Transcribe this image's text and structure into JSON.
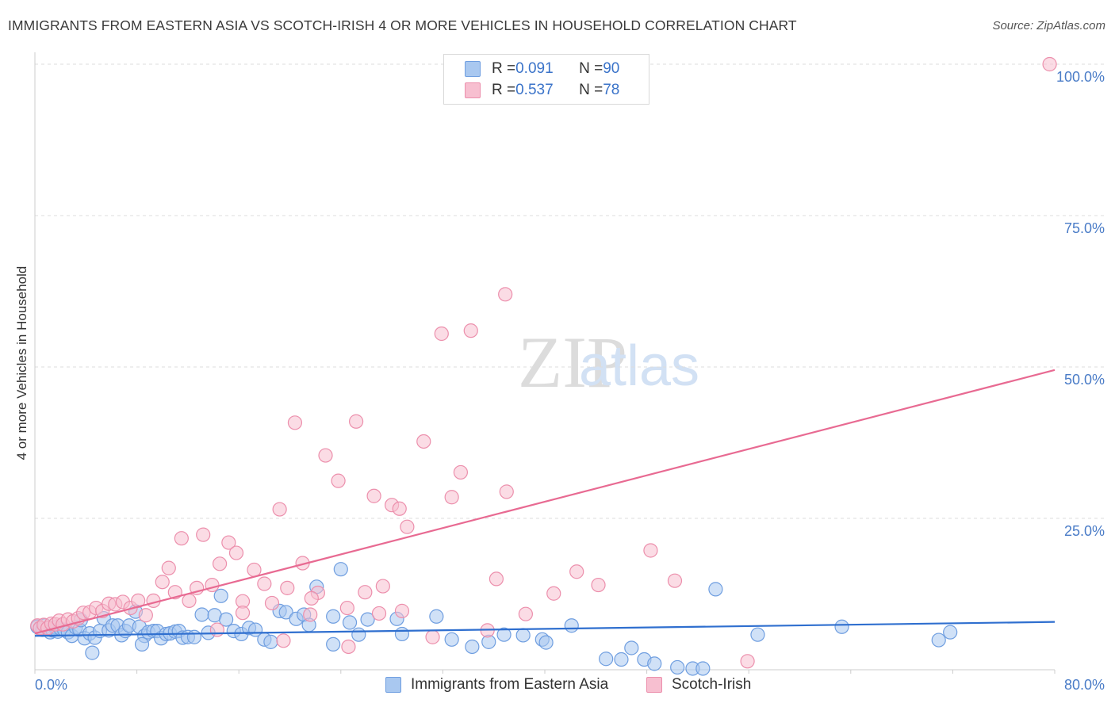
{
  "header": {
    "title": "IMMIGRANTS FROM EASTERN ASIA VS SCOTCH-IRISH 4 OR MORE VEHICLES IN HOUSEHOLD CORRELATION CHART",
    "source": "Source: ZipAtlas.com"
  },
  "legend": {
    "row1": {
      "r_label": "R = ",
      "r_value": "0.091",
      "n_label": "N = ",
      "n_value": "90"
    },
    "row2": {
      "r_label": "R = ",
      "r_value": "0.537",
      "n_label": "N = ",
      "n_value": "78"
    }
  },
  "watermark": {
    "zip": "ZIP",
    "atlas": "atlas"
  },
  "colors": {
    "blue_fill": "#a9c8f0",
    "blue_stroke": "#6f9ee0",
    "blue_line": "#2f6fcf",
    "pink_fill": "#f7bfd0",
    "pink_stroke": "#ec8fac",
    "pink_line": "#e86a92",
    "tick_text": "#4a7cc7",
    "grid": "#dddddd"
  },
  "chart_data": {
    "type": "scatter",
    "title": "IMMIGRANTS FROM EASTERN ASIA VS SCOTCH-IRISH 4 OR MORE VEHICLES IN HOUSEHOLD CORRELATION CHART",
    "xlabel": "",
    "ylabel": "4 or more Vehicles in Household",
    "xlim": [
      0,
      80
    ],
    "ylim": [
      0,
      100
    ],
    "x_tick_labels": [
      "0.0%",
      "80.0%"
    ],
    "y_ticks": [
      25,
      50,
      75,
      100
    ],
    "y_tick_labels": [
      "25.0%",
      "50.0%",
      "75.0%",
      "100.0%"
    ],
    "grid": true,
    "legend_position": "top-center",
    "series": [
      {
        "name": "Immigrants from Eastern Asia",
        "color": "#a9c8f0",
        "trend": {
          "x": [
            0,
            80
          ],
          "y": [
            5.6,
            7.9
          ]
        },
        "points": [
          [
            0.2,
            7.1
          ],
          [
            0.4,
            6.8
          ],
          [
            0.6,
            6.6
          ],
          [
            0.8,
            7.3
          ],
          [
            1.0,
            6.9
          ],
          [
            1.2,
            6.2
          ],
          [
            1.4,
            6.5
          ],
          [
            1.6,
            7.0
          ],
          [
            1.8,
            6.3
          ],
          [
            2.0,
            6.8
          ],
          [
            2.3,
            6.6
          ],
          [
            2.6,
            6.2
          ],
          [
            2.9,
            5.6
          ],
          [
            3.2,
            7.0
          ],
          [
            3.5,
            6.6
          ],
          [
            3.9,
            5.2
          ],
          [
            4.3,
            6.0
          ],
          [
            4.7,
            5.3
          ],
          [
            5.1,
            6.4
          ],
          [
            5.4,
            8.5
          ],
          [
            5.8,
            6.5
          ],
          [
            6.1,
            7.3
          ],
          [
            6.5,
            7.3
          ],
          [
            6.8,
            5.7
          ],
          [
            7.1,
            6.4
          ],
          [
            7.4,
            7.3
          ],
          [
            7.9,
            9.6
          ],
          [
            8.2,
            7.1
          ],
          [
            8.6,
            5.6
          ],
          [
            8.9,
            6.2
          ],
          [
            9.3,
            6.4
          ],
          [
            9.6,
            6.4
          ],
          [
            9.9,
            5.2
          ],
          [
            10.3,
            5.9
          ],
          [
            10.6,
            6.0
          ],
          [
            11.0,
            6.3
          ],
          [
            11.3,
            6.4
          ],
          [
            11.6,
            5.3
          ],
          [
            12.0,
            5.4
          ],
          [
            12.5,
            5.4
          ],
          [
            13.1,
            9.1
          ],
          [
            13.6,
            6.1
          ],
          [
            14.1,
            9.0
          ],
          [
            14.6,
            12.2
          ],
          [
            15.0,
            8.3
          ],
          [
            15.6,
            6.4
          ],
          [
            16.2,
            5.9
          ],
          [
            16.8,
            6.9
          ],
          [
            17.3,
            6.6
          ],
          [
            18.0,
            5.0
          ],
          [
            18.5,
            4.6
          ],
          [
            19.2,
            9.7
          ],
          [
            19.7,
            9.5
          ],
          [
            20.5,
            8.4
          ],
          [
            21.1,
            9.1
          ],
          [
            21.5,
            7.4
          ],
          [
            22.1,
            13.7
          ],
          [
            23.4,
            8.8
          ],
          [
            24.0,
            16.6
          ],
          [
            24.7,
            7.8
          ],
          [
            25.4,
            5.8
          ],
          [
            26.1,
            8.3
          ],
          [
            28.4,
            8.4
          ],
          [
            28.8,
            5.9
          ],
          [
            32.7,
            5.0
          ],
          [
            34.3,
            3.8
          ],
          [
            36.8,
            5.8
          ],
          [
            38.3,
            5.7
          ],
          [
            39.8,
            5.0
          ],
          [
            40.1,
            4.5
          ],
          [
            42.1,
            7.3
          ],
          [
            44.8,
            1.8
          ],
          [
            46.0,
            1.7
          ],
          [
            47.8,
            1.7
          ],
          [
            48.6,
            1.0
          ],
          [
            50.4,
            0.4
          ],
          [
            51.6,
            0.2
          ],
          [
            52.4,
            0.2
          ],
          [
            53.4,
            13.3
          ],
          [
            56.7,
            5.8
          ],
          [
            63.3,
            7.1
          ],
          [
            70.9,
            4.9
          ],
          [
            71.8,
            6.2
          ],
          [
            8.4,
            4.2
          ],
          [
            23.4,
            4.2
          ],
          [
            3.6,
            8.2
          ],
          [
            4.5,
            2.8
          ],
          [
            31.5,
            8.8
          ],
          [
            35.6,
            4.6
          ],
          [
            46.8,
            3.6
          ]
        ]
      },
      {
        "name": "Scotch-Irish",
        "color": "#f7bfd0",
        "trend": {
          "x": [
            0,
            80
          ],
          "y": [
            6.0,
            49.5
          ]
        },
        "points": [
          [
            0.2,
            7.3
          ],
          [
            0.4,
            6.9
          ],
          [
            0.7,
            7.4
          ],
          [
            1.0,
            6.9
          ],
          [
            1.3,
            7.6
          ],
          [
            1.6,
            7.5
          ],
          [
            1.9,
            8.1
          ],
          [
            2.2,
            7.5
          ],
          [
            2.6,
            8.3
          ],
          [
            3.0,
            8.0
          ],
          [
            3.4,
            8.5
          ],
          [
            3.8,
            9.4
          ],
          [
            4.3,
            9.5
          ],
          [
            4.8,
            10.2
          ],
          [
            5.3,
            9.7
          ],
          [
            5.8,
            10.9
          ],
          [
            6.3,
            10.8
          ],
          [
            6.9,
            11.2
          ],
          [
            7.5,
            10.2
          ],
          [
            8.1,
            11.4
          ],
          [
            8.7,
            9.0
          ],
          [
            9.3,
            11.4
          ],
          [
            10.0,
            14.5
          ],
          [
            10.5,
            16.8
          ],
          [
            11.0,
            12.8
          ],
          [
            11.5,
            21.7
          ],
          [
            12.1,
            11.4
          ],
          [
            12.7,
            13.5
          ],
          [
            13.2,
            22.3
          ],
          [
            13.9,
            14.0
          ],
          [
            14.5,
            17.5
          ],
          [
            15.2,
            21.0
          ],
          [
            15.8,
            19.3
          ],
          [
            16.3,
            11.3
          ],
          [
            17.2,
            16.5
          ],
          [
            18.0,
            14.2
          ],
          [
            18.6,
            11.0
          ],
          [
            19.2,
            26.5
          ],
          [
            19.8,
            13.5
          ],
          [
            20.4,
            40.8
          ],
          [
            21.0,
            17.6
          ],
          [
            21.6,
            9.1
          ],
          [
            22.2,
            12.7
          ],
          [
            22.8,
            35.4
          ],
          [
            23.8,
            31.2
          ],
          [
            24.5,
            10.2
          ],
          [
            25.2,
            41.0
          ],
          [
            25.9,
            12.8
          ],
          [
            26.6,
            28.7
          ],
          [
            27.3,
            13.8
          ],
          [
            28.0,
            27.2
          ],
          [
            28.6,
            26.6
          ],
          [
            29.2,
            23.6
          ],
          [
            30.5,
            37.7
          ],
          [
            31.2,
            5.4
          ],
          [
            31.9,
            55.5
          ],
          [
            32.7,
            28.5
          ],
          [
            33.4,
            32.6
          ],
          [
            34.2,
            56.0
          ],
          [
            35.5,
            6.5
          ],
          [
            36.2,
            15.0
          ],
          [
            37.0,
            29.4
          ],
          [
            38.5,
            9.2
          ],
          [
            40.7,
            12.6
          ],
          [
            42.5,
            16.2
          ],
          [
            44.2,
            14.0
          ],
          [
            48.3,
            19.7
          ],
          [
            50.2,
            14.7
          ],
          [
            55.9,
            1.4
          ],
          [
            79.6,
            100.0
          ],
          [
            27.0,
            9.3
          ],
          [
            24.6,
            3.8
          ],
          [
            21.7,
            11.8
          ],
          [
            16.3,
            9.4
          ],
          [
            19.5,
            4.8
          ],
          [
            14.3,
            6.6
          ],
          [
            28.8,
            9.7
          ],
          [
            36.9,
            62.0
          ]
        ]
      }
    ]
  },
  "bottom_legend": {
    "item1": "Immigrants from Eastern Asia",
    "item2": "Scotch-Irish"
  }
}
